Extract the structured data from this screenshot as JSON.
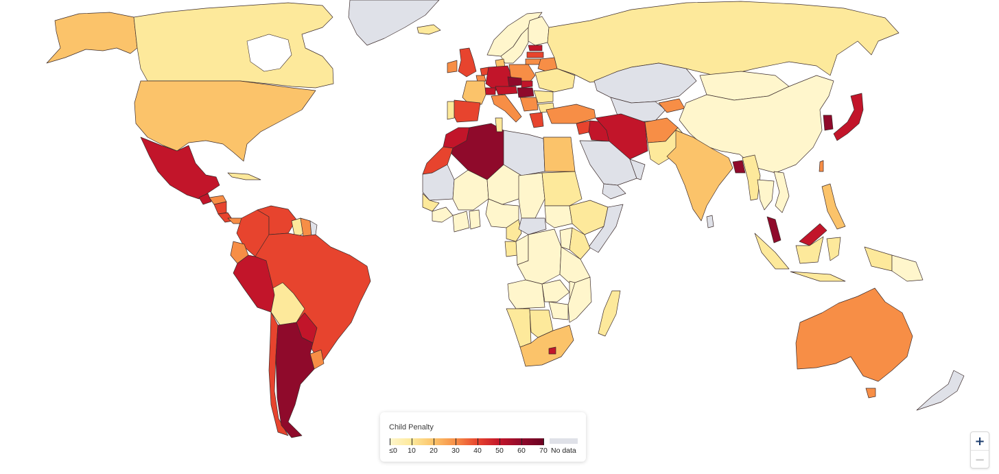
{
  "legend": {
    "title": "Child Penalty",
    "no_data_label": "No data",
    "no_data_color": "#dfe1e8",
    "stops": [
      {
        "label": "≤0",
        "value": 0
      },
      {
        "label": "10",
        "value": 10
      },
      {
        "label": "20",
        "value": 20
      },
      {
        "label": "30",
        "value": 30
      },
      {
        "label": "40",
        "value": 40
      },
      {
        "label": "50",
        "value": 50
      },
      {
        "label": "60",
        "value": 60
      },
      {
        "label": "70",
        "value": 70
      }
    ],
    "colors": [
      "#fff6cc",
      "#fde99b",
      "#fbc36a",
      "#f78e46",
      "#e7442e",
      "#c2152a",
      "#8f0a2b",
      "#6b0022"
    ]
  },
  "zoom": {
    "in_label": "+",
    "out_label": "−"
  },
  "map": {
    "ocean_color": "#ffffff",
    "countries": [
      {
        "name": "Canada",
        "value": 18
      },
      {
        "name": "Alaska (United States)",
        "value": 23
      },
      {
        "name": "United States",
        "value": 23
      },
      {
        "name": "Greenland",
        "value": null
      },
      {
        "name": "Mexico",
        "value": 58
      },
      {
        "name": "Guatemala",
        "value": 55
      },
      {
        "name": "Honduras",
        "value": 34
      },
      {
        "name": "Nicaragua",
        "value": 40
      },
      {
        "name": "Costa Rica",
        "value": 48
      },
      {
        "name": "Panama",
        "value": 35
      },
      {
        "name": "Cuba",
        "value": 16
      },
      {
        "name": "Colombia",
        "value": 43
      },
      {
        "name": "Venezuela",
        "value": 44
      },
      {
        "name": "Guyana",
        "value": 15
      },
      {
        "name": "Suriname",
        "value": 33
      },
      {
        "name": "French Guiana",
        "value": null
      },
      {
        "name": "Ecuador",
        "value": 30
      },
      {
        "name": "Peru",
        "value": 53
      },
      {
        "name": "Brazil",
        "value": 40
      },
      {
        "name": "Bolivia",
        "value": 16
      },
      {
        "name": "Paraguay",
        "value": 52
      },
      {
        "name": "Chile",
        "value": 42
      },
      {
        "name": "Argentina",
        "value": 62
      },
      {
        "name": "Uruguay",
        "value": 38
      },
      {
        "name": "Russia",
        "value": 14
      },
      {
        "name": "China",
        "value": 6
      },
      {
        "name": "Mongolia",
        "value": 6
      },
      {
        "name": "Kazakhstan",
        "value": null
      },
      {
        "name": "Central Asia",
        "value": null
      },
      {
        "name": "Kyrgyzstan",
        "value": 32
      },
      {
        "name": "India",
        "value": 22
      },
      {
        "name": "Afghanistan",
        "value": 32
      },
      {
        "name": "Pakistan",
        "value": 15
      },
      {
        "name": "Iran",
        "value": 55
      },
      {
        "name": "Iraq",
        "value": 50
      },
      {
        "name": "Syria",
        "value": 47
      },
      {
        "name": "Turkey",
        "value": 31
      },
      {
        "name": "Saudi Arabia",
        "value": null
      },
      {
        "name": "Yemen",
        "value": null
      },
      {
        "name": "Oman",
        "value": null
      },
      {
        "name": "Bangladesh",
        "value": 65
      },
      {
        "name": "Myanmar",
        "value": 14
      },
      {
        "name": "Thailand",
        "value": 8
      },
      {
        "name": "Vietnam",
        "value": 9
      },
      {
        "name": "Malaysia",
        "value": 63
      },
      {
        "name": "Borneo (Malaysia)",
        "value": 58
      },
      {
        "name": "Indonesia",
        "value": 14
      },
      {
        "name": "Philippines",
        "value": 20
      },
      {
        "name": "Papua New Guinea",
        "value": 9
      },
      {
        "name": "Japan",
        "value": 58
      },
      {
        "name": "South Korea",
        "value": 64
      },
      {
        "name": "Taiwan",
        "value": 35
      },
      {
        "name": "Australia",
        "value": 33
      },
      {
        "name": "Tasmania (Australia)",
        "value": 33
      },
      {
        "name": "New Zealand",
        "value": null
      },
      {
        "name": "Madagascar",
        "value": 13
      },
      {
        "name": "Sri Lanka",
        "value": null
      },
      {
        "name": "Norway",
        "value": 7
      },
      {
        "name": "Sweden",
        "value": 7
      },
      {
        "name": "Finland",
        "value": 6
      },
      {
        "name": "Denmark",
        "value": 28
      },
      {
        "name": "Estonia",
        "value": 55
      },
      {
        "name": "Latvia",
        "value": 45
      },
      {
        "name": "Lithuania",
        "value": 30
      },
      {
        "name": "Poland",
        "value": 35
      },
      {
        "name": "Germany",
        "value": 55
      },
      {
        "name": "Netherlands",
        "value": 45
      },
      {
        "name": "Belgium",
        "value": 38
      },
      {
        "name": "France",
        "value": 26
      },
      {
        "name": "United Kingdom",
        "value": 42
      },
      {
        "name": "Ireland",
        "value": 36
      },
      {
        "name": "Iceland",
        "value": 15
      },
      {
        "name": "Spain",
        "value": 40
      },
      {
        "name": "Portugal",
        "value": 15
      },
      {
        "name": "Italy",
        "value": 33
      },
      {
        "name": "Switzerland",
        "value": 50
      },
      {
        "name": "Austria",
        "value": 55
      },
      {
        "name": "Czech Republic",
        "value": 62
      },
      {
        "name": "Slovakia",
        "value": 58
      },
      {
        "name": "Hungary",
        "value": 60
      },
      {
        "name": "Romania",
        "value": 16
      },
      {
        "name": "Bulgaria",
        "value": 14
      },
      {
        "name": "Serbia",
        "value": 33
      },
      {
        "name": "Greece",
        "value": 45
      },
      {
        "name": "Ukraine",
        "value": 11
      },
      {
        "name": "Belarus",
        "value": 32
      },
      {
        "name": "Morocco",
        "value": 52
      },
      {
        "name": "Western Sahara",
        "value": 47
      },
      {
        "name": "Algeria",
        "value": 65
      },
      {
        "name": "Tunisia",
        "value": 15
      },
      {
        "name": "Libya",
        "value": null
      },
      {
        "name": "Egypt",
        "value": 22
      },
      {
        "name": "Mauritania",
        "value": null
      },
      {
        "name": "Mali",
        "value": 7
      },
      {
        "name": "Niger",
        "value": 4
      },
      {
        "name": "Chad",
        "value": 4
      },
      {
        "name": "Sudan",
        "value": 10
      },
      {
        "name": "Ethiopia",
        "value": 10
      },
      {
        "name": "Somalia",
        "value": null
      },
      {
        "name": "Senegal",
        "value": 10
      },
      {
        "name": "Guinea",
        "value": 7
      },
      {
        "name": "Côte d'Ivoire",
        "value": 6
      },
      {
        "name": "Ghana",
        "value": 8
      },
      {
        "name": "Nigeria",
        "value": 6
      },
      {
        "name": "Cameroon",
        "value": 10
      },
      {
        "name": "Central African Republic",
        "value": null
      },
      {
        "name": "South Sudan",
        "value": 8
      },
      {
        "name": "Kenya",
        "value": 10
      },
      {
        "name": "Gabon",
        "value": 12
      },
      {
        "name": "Congo",
        "value": 6
      },
      {
        "name": "DR Congo",
        "value": 3
      },
      {
        "name": "Uganda",
        "value": 5
      },
      {
        "name": "Tanzania",
        "value": 4
      },
      {
        "name": "Angola",
        "value": 3
      },
      {
        "name": "Zambia",
        "value": 5
      },
      {
        "name": "Malawi",
        "value": 6
      },
      {
        "name": "Mozambique",
        "value": 4
      },
      {
        "name": "Zimbabwe",
        "value": 7
      },
      {
        "name": "Namibia",
        "value": 12
      },
      {
        "name": "Botswana",
        "value": 10
      },
      {
        "name": "South Africa",
        "value": 25
      },
      {
        "name": "Lesotho",
        "value": 55
      }
    ]
  }
}
